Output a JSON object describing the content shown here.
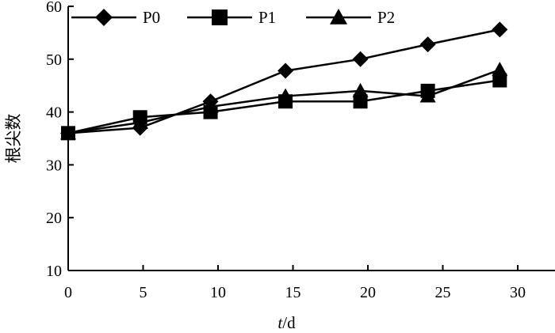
{
  "chart_data": {
    "type": "line",
    "x": [
      0,
      5,
      10,
      15,
      20,
      25,
      30
    ],
    "series": [
      {
        "name": "P0",
        "marker": "diamond",
        "x": [
          0,
          4.8,
          9.5,
          14.5,
          19.5,
          24,
          28.8
        ],
        "values": [
          36,
          37,
          42,
          47.8,
          50,
          52.8,
          55.6
        ]
      },
      {
        "name": "P1",
        "marker": "square",
        "x": [
          0,
          4.8,
          9.5,
          14.5,
          19.5,
          24,
          28.8
        ],
        "values": [
          36,
          39,
          40,
          42,
          42,
          44,
          46
        ]
      },
      {
        "name": "P2",
        "marker": "triangle",
        "x": [
          0,
          4.8,
          9.5,
          14.5,
          19.5,
          24,
          28.8
        ],
        "values": [
          36,
          38,
          41,
          43,
          44,
          43,
          48
        ]
      }
    ],
    "xlim": [
      0,
      32
    ],
    "ylim": [
      10,
      60
    ],
    "xticks": [
      "0",
      "5",
      "10",
      "15",
      "20",
      "25",
      "30"
    ],
    "yticks": [
      "10",
      "20",
      "30",
      "40",
      "50",
      "60"
    ],
    "xlabel_italic": "t",
    "xlabel_rest": "/d",
    "ylabel": "根尖数",
    "legend_position": "top-left",
    "grid": false,
    "colors": {
      "line": "#000000",
      "marker": "#000000"
    }
  }
}
